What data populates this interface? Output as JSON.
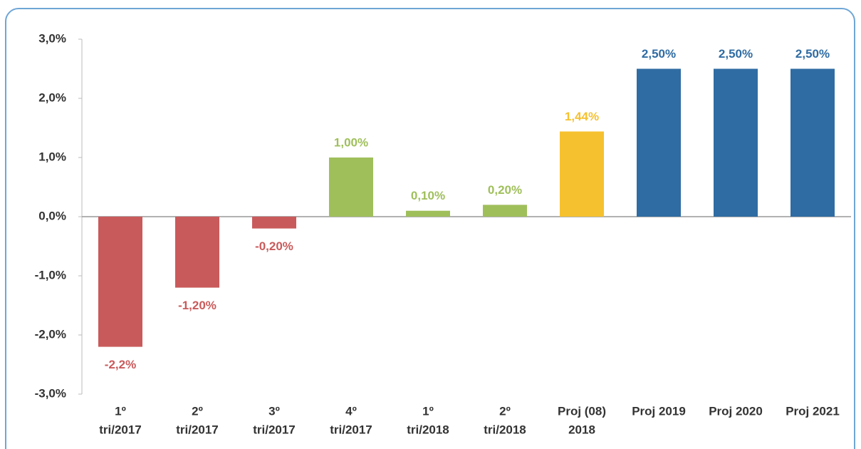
{
  "chart_data": {
    "type": "bar",
    "categories": [
      [
        "1º",
        "tri/2017"
      ],
      [
        "2º",
        "tri/2017"
      ],
      [
        "3º",
        "tri/2017"
      ],
      [
        "4º",
        "tri/2017"
      ],
      [
        "1º",
        "tri/2018"
      ],
      [
        "2º",
        "tri/2018"
      ],
      [
        "Proj (08)",
        "2018"
      ],
      [
        "Proj 2019"
      ],
      [
        "Proj 2020"
      ],
      [
        "Proj 2021"
      ]
    ],
    "values": [
      -2.2,
      -1.2,
      -0.2,
      1.0,
      0.1,
      0.2,
      1.44,
      2.5,
      2.5,
      2.5
    ],
    "value_labels": [
      "-2,2%",
      "-1,20%",
      "-0,20%",
      "1,00%",
      "0,10%",
      "0,20%",
      "1,44%",
      "2,50%",
      "2,50%",
      "2,50%"
    ],
    "colors": [
      "#c95a5b",
      "#c95a5b",
      "#c95a5b",
      "#9fbf5b",
      "#9fbf5b",
      "#9fbf5b",
      "#f6c12e",
      "#2f6ca3",
      "#2f6ca3",
      "#2f6ca3"
    ],
    "ylim": [
      -3,
      3
    ],
    "yticks": [
      {
        "value": -3,
        "label": "-3,0%"
      },
      {
        "value": -2,
        "label": "-2,0%"
      },
      {
        "value": -1,
        "label": "-1,0%"
      },
      {
        "value": 0,
        "label": "0,0%"
      },
      {
        "value": 1,
        "label": "1,0%"
      },
      {
        "value": 2,
        "label": "2,0%"
      },
      {
        "value": 3,
        "label": "3,0%"
      }
    ],
    "grid": false
  }
}
